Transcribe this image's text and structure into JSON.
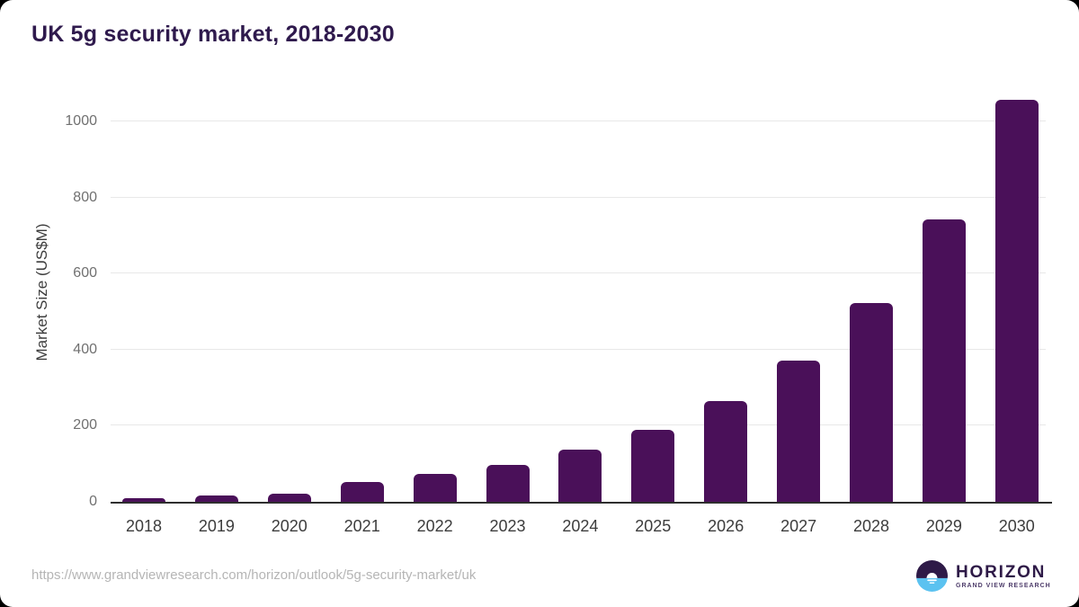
{
  "header": {
    "title": "UK 5g security market, 2018-2030"
  },
  "chart_data": {
    "type": "bar",
    "title": "UK 5g security market, 2018-2030",
    "categories": [
      "2018",
      "2019",
      "2020",
      "2021",
      "2022",
      "2023",
      "2024",
      "2025",
      "2026",
      "2027",
      "2028",
      "2029",
      "2030"
    ],
    "values": [
      10,
      16,
      22,
      52,
      73,
      98,
      137,
      188,
      265,
      371,
      522,
      742,
      1057
    ],
    "xlabel": "",
    "ylabel": "Market Size (US$M)",
    "ylim": [
      0,
      1100
    ],
    "yticks": [
      0,
      200,
      400,
      600,
      800,
      1000
    ],
    "grid": true,
    "legend_position": "none",
    "bar_color": "#4a1059"
  },
  "colors": {
    "title_text": "#2f1a4d",
    "bar": "#4a1059",
    "gridline": "#e8e8e8",
    "axis_line": "#2e2e2e",
    "y_tick_text": "#707070",
    "x_tick_text": "#3c3c3c",
    "url_text": "#b5b5b5",
    "logo_purple": "#2e1a47",
    "logo_blue": "#5bc2f0"
  },
  "footer": {
    "source_url": "https://www.grandviewresearch.com/horizon/outlook/5g-security-market/uk",
    "logo": {
      "name": "HORIZON",
      "subtitle": "GRAND VIEW RESEARCH"
    }
  }
}
